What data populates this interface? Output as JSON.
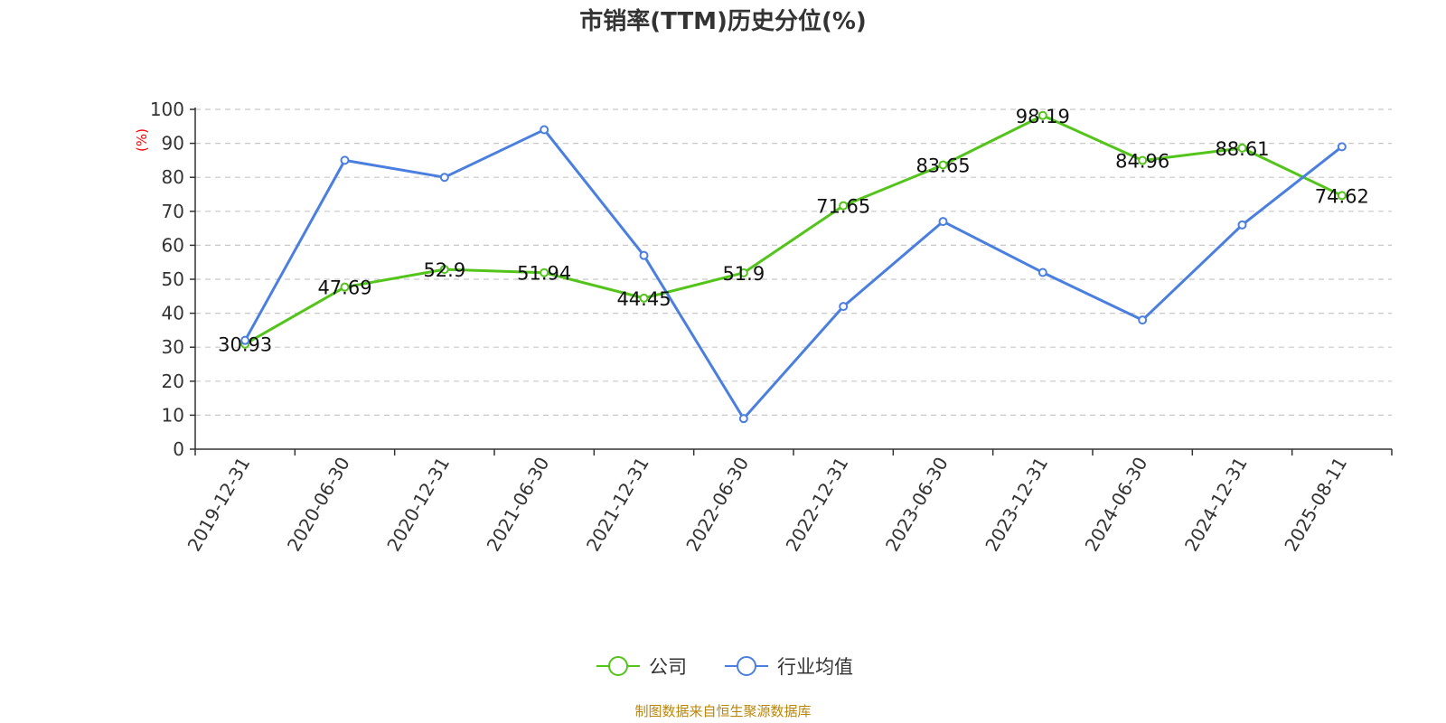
{
  "chart_data": {
    "type": "line",
    "title": "市销率(TTM)历史分位(%)",
    "ylabel": "(%)",
    "xlabel": "",
    "ylim": [
      0,
      100
    ],
    "yticks": [
      0,
      10,
      20,
      30,
      40,
      50,
      60,
      70,
      80,
      90,
      100
    ],
    "grid": true,
    "legend_position": "bottom-center",
    "categories": [
      "2019-12-31",
      "2020-06-30",
      "2020-12-31",
      "2021-06-30",
      "2021-12-31",
      "2022-06-30",
      "2022-12-31",
      "2023-06-30",
      "2023-12-31",
      "2024-06-30",
      "2024-12-31",
      "2025-08-11"
    ],
    "series": [
      {
        "name": "公司",
        "color": "#52c41a",
        "values": [
          30.93,
          47.69,
          52.9,
          51.94,
          44.45,
          51.9,
          71.65,
          83.65,
          98.19,
          84.96,
          88.61,
          74.62
        ],
        "labels": [
          "30.93",
          "47.69",
          "52.9",
          "51.94",
          "44.45",
          "51.9",
          "71.65",
          "83.65",
          "98.19",
          "84.96",
          "88.61",
          "74.62"
        ],
        "show_labels": true
      },
      {
        "name": "行业均值",
        "color": "#4a7fe0",
        "values": [
          32,
          85,
          80,
          94,
          57,
          9,
          42,
          67,
          52,
          38,
          66,
          89
        ],
        "show_labels": false
      }
    ],
    "unit_label_color": "#ff0000"
  },
  "source": {
    "text": "制图数据来自恒生聚源数据库",
    "color": "#b8860b"
  }
}
